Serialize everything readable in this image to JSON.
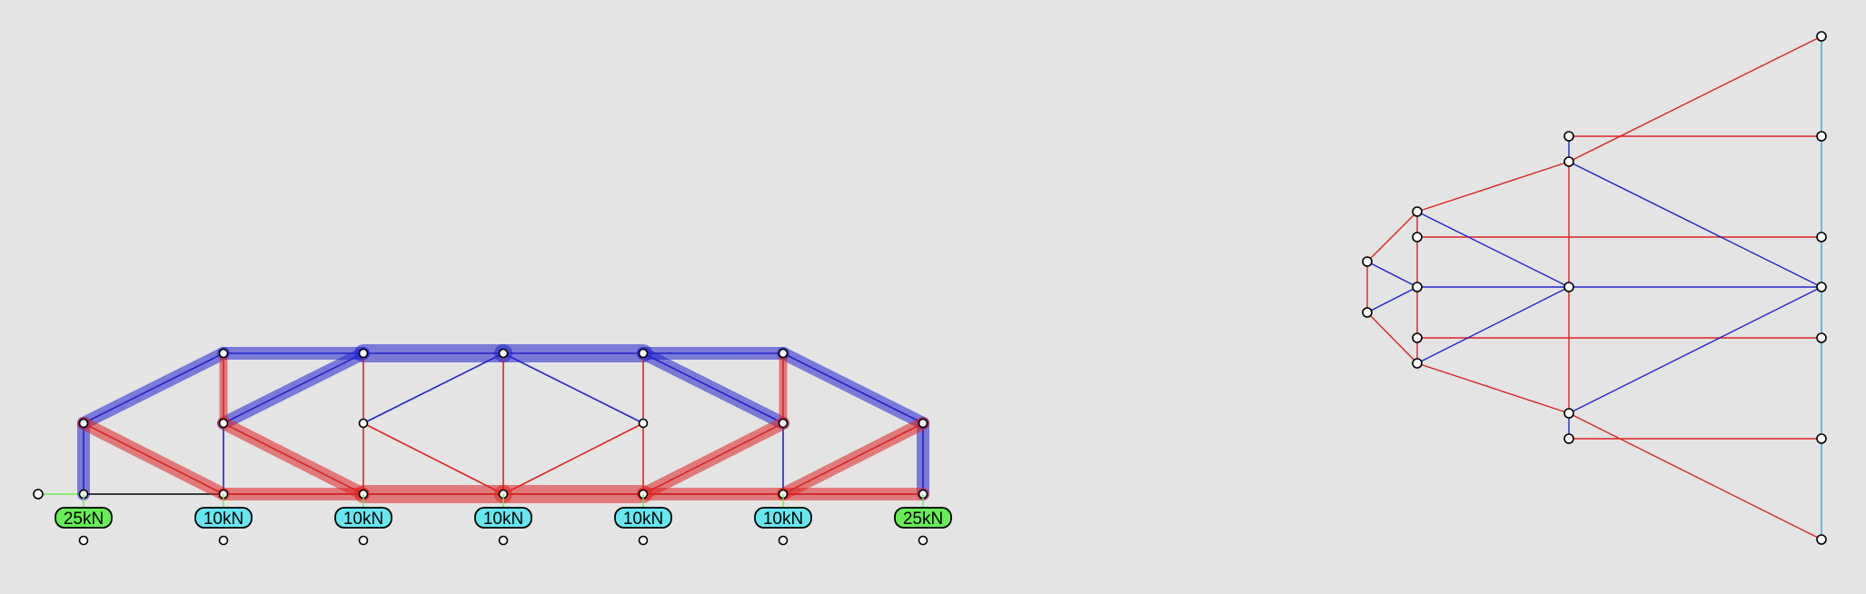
{
  "colors": {
    "background": "#e4e4e4",
    "compression": "#2222cc",
    "tension": "#dd2222",
    "reaction_load": "#66ee55",
    "applied_load": "#66e6ee",
    "load_line": "#33aadd"
  },
  "truss": {
    "loads": [
      {
        "label": "25kN",
        "type": "reaction"
      },
      {
        "label": "10kN",
        "type": "applied"
      },
      {
        "label": "10kN",
        "type": "applied"
      },
      {
        "label": "10kN",
        "type": "applied"
      },
      {
        "label": "10kN",
        "type": "applied"
      },
      {
        "label": "10kN",
        "type": "applied"
      },
      {
        "label": "25kN",
        "type": "reaction"
      }
    ]
  }
}
